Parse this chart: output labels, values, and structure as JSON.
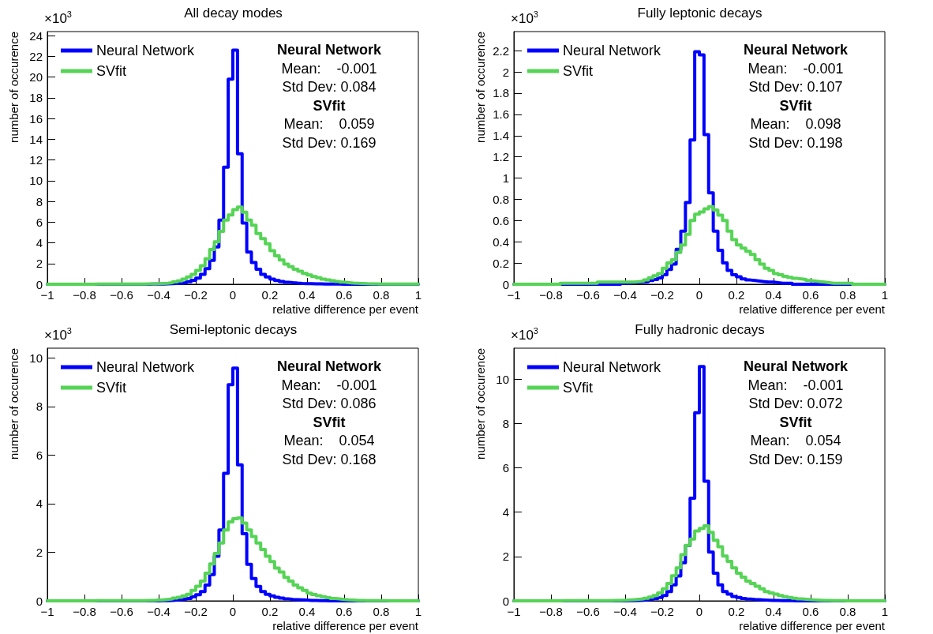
{
  "chart_data": [
    {
      "type": "histogram",
      "title": "All decay modes",
      "xlabel": "relative difference per event",
      "ylabel": "number of occurence",
      "legend": "top left",
      "annotations": [
        "×10$^{3}$",
        "Neural Network",
        "Mean:    -0.001",
        "Std Dev: 0.084",
        "SVfit",
        "Mean:    0.059",
        "Std Dev: 0.169"
      ],
      "xlim": [
        -1,
        1
      ],
      "xticks": [
        -1,
        -0.8,
        -0.6,
        -0.4,
        -0.2,
        0,
        0.2,
        0.4,
        0.6,
        0.8,
        1
      ],
      "ylim": [
        0,
        24.4
      ],
      "yticks": [
        0,
        2,
        4,
        6,
        8,
        10,
        12,
        14,
        16,
        18,
        20,
        22,
        24
      ],
      "bins": [
        -1,
        -0.975,
        -0.95,
        -0.925,
        -0.9,
        -0.875,
        -0.85,
        -0.825,
        -0.8,
        -0.775,
        -0.75,
        -0.725,
        -0.7,
        -0.675,
        -0.65,
        -0.625,
        -0.6,
        -0.575,
        -0.55,
        -0.525,
        -0.5,
        -0.475,
        -0.45,
        -0.425,
        -0.4,
        -0.375,
        -0.35,
        -0.325,
        -0.3,
        -0.275,
        -0.25,
        -0.225,
        -0.2,
        -0.175,
        -0.15,
        -0.125,
        -0.1,
        -0.075,
        -0.05,
        -0.025,
        0,
        0.025,
        0.05,
        0.075,
        0.1,
        0.125,
        0.15,
        0.175,
        0.2,
        0.225,
        0.25,
        0.275,
        0.3,
        0.325,
        0.35,
        0.375,
        0.4,
        0.425,
        0.45,
        0.475,
        0.5,
        0.525,
        0.55,
        0.575,
        0.6,
        0.625,
        0.65,
        0.675,
        0.7,
        0.725,
        0.75,
        0.775,
        0.8,
        0.825,
        0.85,
        0.875,
        0.9,
        0.925,
        0.95,
        0.975,
        1
      ],
      "series": [
        {
          "name": "Neural Network",
          "color": "#0000ff",
          "values": [
            0,
            0,
            0,
            0,
            0,
            0,
            0,
            0,
            0,
            0,
            0,
            0,
            0,
            0,
            0,
            0,
            0,
            0,
            0,
            0,
            0,
            0,
            0.01,
            0.01,
            0.02,
            0.03,
            0.05,
            0.07,
            0.1,
            0.15,
            0.24,
            0.38,
            0.6,
            0.95,
            1.5,
            2.3,
            3.6,
            6.2,
            11.3,
            19.8,
            22.6,
            12.6,
            5.9,
            3.1,
            2.1,
            1.45,
            0.95,
            0.7,
            0.5,
            0.36,
            0.27,
            0.2,
            0.15,
            0.11,
            0.08,
            0.06,
            0.05,
            0.04,
            0.03,
            0.02,
            0.02,
            0.01,
            0.01,
            0,
            0,
            0,
            0,
            0,
            0,
            0,
            0,
            0,
            0,
            0,
            0,
            0,
            0,
            0,
            0,
            0
          ]
        },
        {
          "name": "SVfit",
          "color": "#55d455",
          "values": [
            0,
            0,
            0,
            0,
            0,
            0,
            0,
            0,
            0,
            0,
            0.01,
            0.01,
            0.01,
            0.01,
            0.01,
            0.01,
            0.01,
            0.01,
            0.01,
            0.01,
            0.02,
            0.03,
            0.04,
            0.05,
            0.07,
            0.1,
            0.15,
            0.22,
            0.33,
            0.5,
            0.7,
            0.95,
            1.33,
            1.8,
            2.45,
            3.35,
            4.1,
            5.1,
            6.2,
            6.7,
            7.2,
            7.46,
            6.95,
            6.2,
            5.7,
            4.9,
            4.4,
            3.9,
            3.25,
            2.75,
            2.35,
            1.95,
            1.7,
            1.45,
            1.25,
            1.05,
            0.9,
            0.75,
            0.62,
            0.5,
            0.42,
            0.34,
            0.27,
            0.21,
            0.16,
            0.12,
            0.09,
            0.07,
            0.05,
            0.04,
            0.03,
            0.02,
            0.01,
            0.01,
            0.01,
            0.01,
            0.01,
            0.01,
            0.01,
            0.01
          ]
        }
      ]
    },
    {
      "type": "histogram",
      "title": "Fully leptonic decays",
      "xlabel": "relative difference per event",
      "ylabel": "number of occurence",
      "legend": "top left",
      "annotations": [
        "×10$^{3}$",
        "Neural Network",
        "Mean:    -0.001",
        "Std Dev: 0.107",
        "SVfit",
        "Mean:    0.098",
        "Std Dev: 0.198"
      ],
      "xlim": [
        -1,
        1
      ],
      "xticks": [
        -1,
        -0.8,
        -0.6,
        -0.4,
        -0.2,
        0,
        0.2,
        0.4,
        0.6,
        0.8,
        1
      ],
      "ylim": [
        0,
        2.38
      ],
      "yticks": [
        0,
        0.2,
        0.4,
        0.6,
        0.8,
        1,
        1.2,
        1.4,
        1.6,
        1.8,
        2,
        2.2
      ],
      "bins": [
        -1,
        -0.975,
        -0.95,
        -0.925,
        -0.9,
        -0.875,
        -0.85,
        -0.825,
        -0.8,
        -0.775,
        -0.75,
        -0.725,
        -0.7,
        -0.675,
        -0.65,
        -0.625,
        -0.6,
        -0.575,
        -0.55,
        -0.525,
        -0.5,
        -0.475,
        -0.45,
        -0.425,
        -0.4,
        -0.375,
        -0.35,
        -0.325,
        -0.3,
        -0.275,
        -0.25,
        -0.225,
        -0.2,
        -0.175,
        -0.15,
        -0.125,
        -0.1,
        -0.075,
        -0.05,
        -0.025,
        0,
        0.025,
        0.05,
        0.075,
        0.1,
        0.125,
        0.15,
        0.175,
        0.2,
        0.225,
        0.25,
        0.275,
        0.3,
        0.325,
        0.35,
        0.375,
        0.4,
        0.425,
        0.45,
        0.475,
        0.5,
        0.525,
        0.55,
        0.575,
        0.6,
        0.625,
        0.65,
        0.675,
        0.7,
        0.725,
        0.75,
        0.775,
        0.8,
        0.825,
        0.85,
        0.875,
        0.9,
        0.925,
        0.95,
        0.975,
        1
      ],
      "series": [
        {
          "name": "Neural Network",
          "color": "#0000ff",
          "values": [
            0,
            0,
            0,
            0,
            0,
            0,
            0,
            0,
            0,
            0,
            0,
            0,
            0,
            0,
            0,
            0,
            0,
            0,
            0,
            0,
            0,
            0,
            0,
            0.01,
            0.01,
            0.015,
            0.015,
            0.02,
            0.025,
            0.035,
            0.045,
            0.06,
            0.09,
            0.14,
            0.19,
            0.33,
            0.5,
            0.77,
            1.36,
            2.19,
            2.16,
            1.41,
            0.86,
            0.5,
            0.32,
            0.2,
            0.13,
            0.09,
            0.07,
            0.05,
            0.04,
            0.035,
            0.03,
            0.025,
            0.02,
            0.02,
            0.015,
            0.01,
            0.01,
            0.01,
            0,
            0,
            0,
            0,
            0,
            0,
            0,
            0,
            0,
            0,
            0,
            0,
            0,
            0,
            0,
            0,
            0,
            0,
            0,
            0
          ]
        },
        {
          "name": "SVfit",
          "color": "#55d455",
          "values": [
            0,
            0,
            0,
            0,
            0,
            0,
            0,
            0,
            0,
            0,
            0.01,
            0.01,
            0.01,
            0.01,
            0.01,
            0.01,
            0.01,
            0.01,
            0.02,
            0.02,
            0.02,
            0.02,
            0.02,
            0.02,
            0.02,
            0.02,
            0.025,
            0.03,
            0.04,
            0.06,
            0.08,
            0.1,
            0.15,
            0.2,
            0.23,
            0.3,
            0.37,
            0.47,
            0.6,
            0.66,
            0.68,
            0.71,
            0.73,
            0.7,
            0.65,
            0.6,
            0.5,
            0.42,
            0.37,
            0.34,
            0.31,
            0.28,
            0.23,
            0.19,
            0.15,
            0.13,
            0.1,
            0.09,
            0.075,
            0.065,
            0.055,
            0.05,
            0.045,
            0.035,
            0.03,
            0.025,
            0.02,
            0.015,
            0.01,
            0.01,
            0.01,
            0.01,
            0.01,
            0,
            0,
            0,
            0,
            0,
            0,
            0
          ]
        }
      ]
    },
    {
      "type": "histogram",
      "title": "Semi-leptonic decays",
      "xlabel": "relative difference per event",
      "ylabel": "number of occurence",
      "legend": "top left",
      "annotations": [
        "×10$^{3}$",
        "Neural Network",
        "Mean:    -0.001",
        "Std Dev: 0.086",
        "SVfit",
        "Mean:    0.054",
        "Std Dev: 0.168"
      ],
      "xlim": [
        -1,
        1
      ],
      "xticks": [
        -1,
        -0.8,
        -0.6,
        -0.4,
        -0.2,
        0,
        0.2,
        0.4,
        0.6,
        0.8,
        1
      ],
      "ylim": [
        0,
        10.4
      ],
      "yticks": [
        0,
        2,
        4,
        6,
        8,
        10
      ],
      "bins": [
        -1,
        -0.975,
        -0.95,
        -0.925,
        -0.9,
        -0.875,
        -0.85,
        -0.825,
        -0.8,
        -0.775,
        -0.75,
        -0.725,
        -0.7,
        -0.675,
        -0.65,
        -0.625,
        -0.6,
        -0.575,
        -0.55,
        -0.525,
        -0.5,
        -0.475,
        -0.45,
        -0.425,
        -0.4,
        -0.375,
        -0.35,
        -0.325,
        -0.3,
        -0.275,
        -0.25,
        -0.225,
        -0.2,
        -0.175,
        -0.15,
        -0.125,
        -0.1,
        -0.075,
        -0.05,
        -0.025,
        0,
        0.025,
        0.05,
        0.075,
        0.1,
        0.125,
        0.15,
        0.175,
        0.2,
        0.225,
        0.25,
        0.275,
        0.3,
        0.325,
        0.35,
        0.375,
        0.4,
        0.425,
        0.45,
        0.475,
        0.5,
        0.525,
        0.55,
        0.575,
        0.6,
        0.625,
        0.65,
        0.675,
        0.7,
        0.725,
        0.75,
        0.775,
        0.8,
        0.825,
        0.85,
        0.875,
        0.9,
        0.925,
        0.95,
        0.975,
        1
      ],
      "series": [
        {
          "name": "Neural Network",
          "color": "#0000ff",
          "values": [
            0,
            0,
            0,
            0,
            0,
            0,
            0,
            0,
            0,
            0,
            0,
            0,
            0,
            0,
            0,
            0,
            0,
            0,
            0,
            0,
            0,
            0,
            0,
            0,
            0.01,
            0.01,
            0.02,
            0.03,
            0.05,
            0.07,
            0.1,
            0.17,
            0.25,
            0.38,
            0.65,
            1.08,
            1.84,
            2.92,
            5.25,
            8.9,
            9.58,
            5.6,
            2.76,
            1.5,
            0.92,
            0.59,
            0.38,
            0.27,
            0.2,
            0.15,
            0.11,
            0.08,
            0.06,
            0.05,
            0.04,
            0.03,
            0.02,
            0.02,
            0.01,
            0.01,
            0,
            0,
            0,
            0,
            0,
            0,
            0,
            0,
            0,
            0,
            0,
            0,
            0,
            0,
            0,
            0,
            0,
            0,
            0,
            0
          ]
        },
        {
          "name": "SVfit",
          "color": "#55d455",
          "values": [
            0,
            0,
            0,
            0,
            0,
            0,
            0,
            0,
            0,
            0,
            0.01,
            0.01,
            0.01,
            0.01,
            0.01,
            0.01,
            0.01,
            0.01,
            0.01,
            0.01,
            0.01,
            0.02,
            0.02,
            0.03,
            0.04,
            0.06,
            0.08,
            0.11,
            0.15,
            0.2,
            0.27,
            0.43,
            0.6,
            0.81,
            1.14,
            1.52,
            1.95,
            2.38,
            2.92,
            3.25,
            3.38,
            3.41,
            3.2,
            2.92,
            2.65,
            2.38,
            2.11,
            1.84,
            1.62,
            1.35,
            1.19,
            0.97,
            0.81,
            0.65,
            0.54,
            0.43,
            0.32,
            0.26,
            0.21,
            0.17,
            0.13,
            0.1,
            0.08,
            0.06,
            0.04,
            0.03,
            0.02,
            0.02,
            0.01,
            0.01,
            0.01,
            0.01,
            0.01,
            0,
            0,
            0,
            0,
            0,
            0,
            0
          ]
        }
      ]
    },
    {
      "type": "histogram",
      "title": "Fully hadronic decays",
      "xlabel": "relative difference per event",
      "ylabel": "number of occurence",
      "legend": "top left",
      "annotations": [
        "×10$^{3}$",
        "Neural Network",
        "Mean:    -0.001",
        "Std Dev: 0.072",
        "SVfit",
        "Mean:    0.054",
        "Std Dev: 0.159"
      ],
      "xlim": [
        -1,
        1
      ],
      "xticks": [
        -1,
        -0.8,
        -0.6,
        -0.4,
        -0.2,
        0,
        0.2,
        0.4,
        0.6,
        0.8,
        1
      ],
      "ylim": [
        0,
        11.4
      ],
      "yticks": [
        0,
        2,
        4,
        6,
        8,
        10
      ],
      "bins": [
        -1,
        -0.975,
        -0.95,
        -0.925,
        -0.9,
        -0.875,
        -0.85,
        -0.825,
        -0.8,
        -0.775,
        -0.75,
        -0.725,
        -0.7,
        -0.675,
        -0.65,
        -0.625,
        -0.6,
        -0.575,
        -0.55,
        -0.525,
        -0.5,
        -0.475,
        -0.45,
        -0.425,
        -0.4,
        -0.375,
        -0.35,
        -0.325,
        -0.3,
        -0.275,
        -0.25,
        -0.225,
        -0.2,
        -0.175,
        -0.15,
        -0.125,
        -0.1,
        -0.075,
        -0.05,
        -0.025,
        0,
        0.025,
        0.05,
        0.075,
        0.1,
        0.125,
        0.15,
        0.175,
        0.2,
        0.225,
        0.25,
        0.275,
        0.3,
        0.325,
        0.35,
        0.375,
        0.4,
        0.425,
        0.45,
        0.475,
        0.5,
        0.525,
        0.55,
        0.575,
        0.6,
        0.625,
        0.65,
        0.675,
        0.7,
        0.725,
        0.75,
        0.775,
        0.8,
        0.825,
        0.85,
        0.875,
        0.9,
        0.925,
        0.95,
        0.975,
        1
      ],
      "series": [
        {
          "name": "Neural Network",
          "color": "#0000ff",
          "values": [
            0,
            0,
            0,
            0,
            0,
            0,
            0,
            0,
            0,
            0,
            0,
            0,
            0,
            0,
            0,
            0,
            0,
            0,
            0,
            0,
            0,
            0,
            0,
            0,
            0.01,
            0.01,
            0.02,
            0.03,
            0.05,
            0.07,
            0.1,
            0.15,
            0.24,
            0.42,
            0.72,
            1.12,
            1.72,
            2.49,
            4.63,
            8.49,
            10.57,
            5.4,
            2.2,
            1.25,
            0.72,
            0.42,
            0.3,
            0.2,
            0.15,
            0.11,
            0.08,
            0.06,
            0.05,
            0.04,
            0.03,
            0.02,
            0.02,
            0.01,
            0.01,
            0.01,
            0,
            0,
            0,
            0,
            0,
            0,
            0,
            0,
            0,
            0,
            0,
            0,
            0,
            0,
            0,
            0,
            0,
            0,
            0,
            0
          ]
        },
        {
          "name": "SVfit",
          "color": "#55d455",
          "values": [
            0,
            0,
            0,
            0,
            0,
            0,
            0,
            0,
            0,
            0,
            0.01,
            0.01,
            0.01,
            0.01,
            0.01,
            0.01,
            0.01,
            0.01,
            0.01,
            0.01,
            0.01,
            0.02,
            0.02,
            0.03,
            0.04,
            0.05,
            0.07,
            0.09,
            0.12,
            0.17,
            0.24,
            0.36,
            0.54,
            0.78,
            1.13,
            1.49,
            2.08,
            2.5,
            2.79,
            3.15,
            3.27,
            3.38,
            3.09,
            2.73,
            2.44,
            2.02,
            1.78,
            1.49,
            1.25,
            1.07,
            0.89,
            0.78,
            0.66,
            0.54,
            0.42,
            0.36,
            0.3,
            0.24,
            0.19,
            0.15,
            0.12,
            0.09,
            0.07,
            0.05,
            0.04,
            0.03,
            0.02,
            0.02,
            0.01,
            0.01,
            0.01,
            0,
            0,
            0,
            0,
            0,
            0,
            0,
            0,
            0
          ]
        }
      ]
    }
  ]
}
